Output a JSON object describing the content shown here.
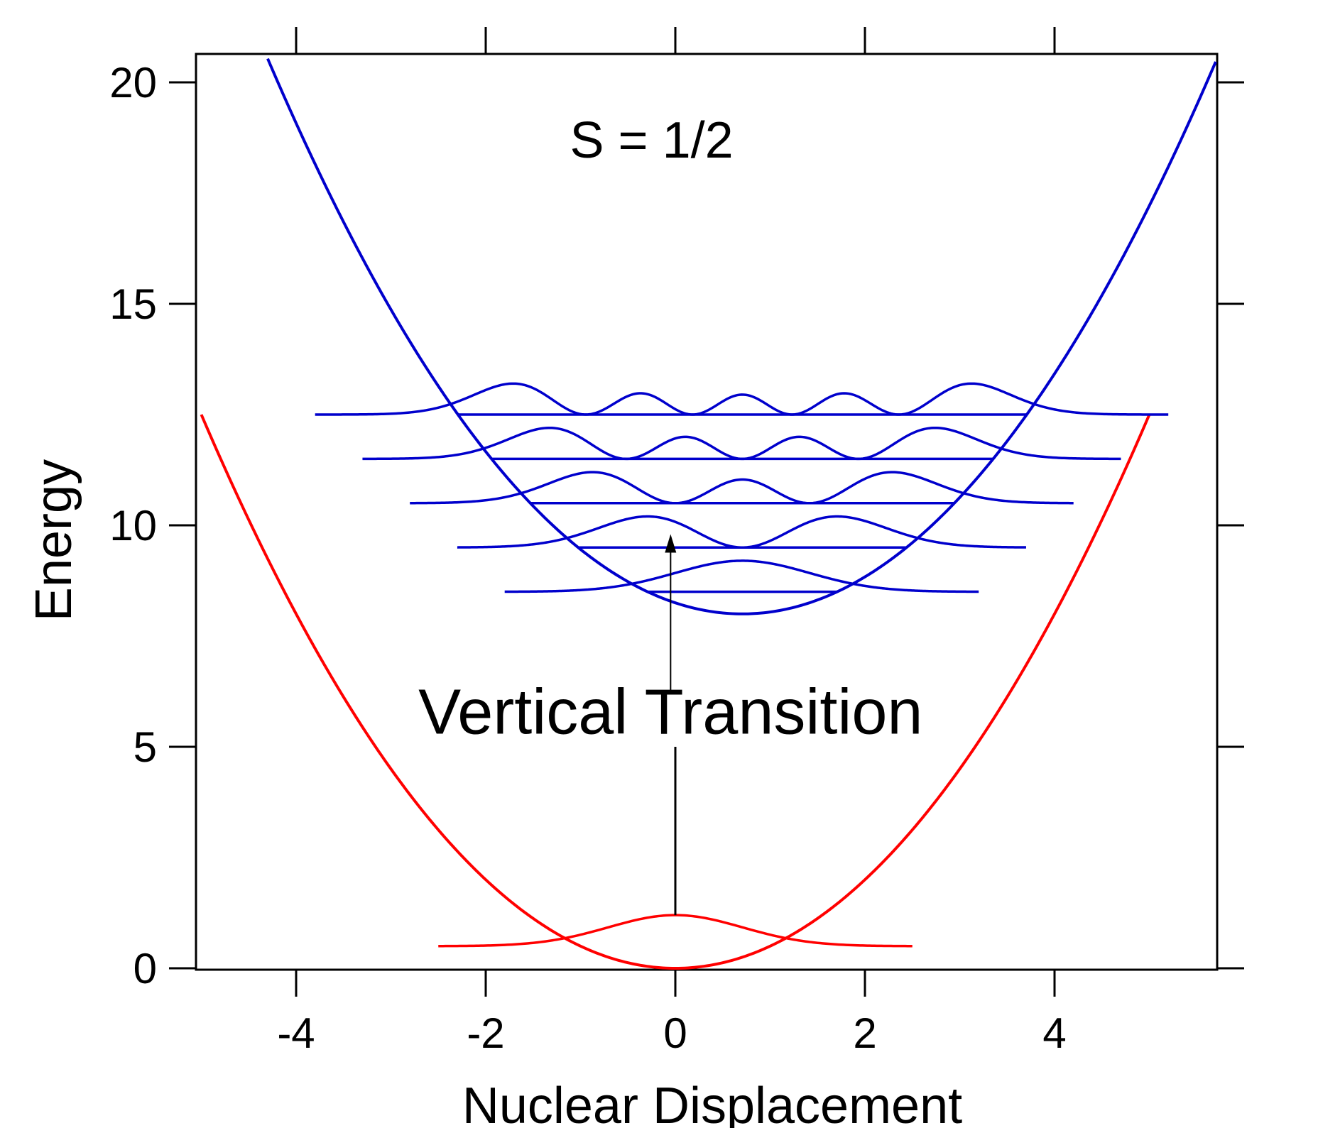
{
  "chart_data": {
    "type": "line",
    "title": "",
    "xlabel": "Nuclear Displacement",
    "ylabel": "Energy",
    "xlim": [
      -5.2,
      5.7
    ],
    "ylim": [
      -0.1,
      20.6
    ],
    "grid": false,
    "legend": "none",
    "x_ticks": [
      -4,
      -2,
      0,
      2,
      4
    ],
    "x_tick_labels": [
      "-4",
      "-2",
      "0",
      "2",
      "4"
    ],
    "y_ticks": [
      0,
      5,
      10,
      15,
      20
    ],
    "y_tick_labels": [
      "0",
      "5",
      "10",
      "15",
      "20"
    ],
    "colors": {
      "ground": "#ff0000",
      "excited": "#0000cc",
      "arrow": "#000000",
      "axes": "#000000"
    },
    "series": [
      {
        "role": "ground-potential",
        "color": "#ff0000",
        "equation": "E = 0.5*x^2",
        "x_range": [
          -5.0,
          5.0
        ],
        "minimum": [
          0,
          0
        ]
      },
      {
        "role": "excited-potential",
        "color": "#0000cc",
        "equation": "E = 8 + 0.5*(x - 0.707)^2",
        "x_range": [
          -4.3,
          5.7
        ],
        "minimum": [
          0.707,
          8
        ]
      },
      {
        "role": "ground-wavefunction",
        "color": "#ff0000",
        "level": 0,
        "energy": 0.5,
        "center": 0,
        "x_range": [
          -2.5,
          2.5
        ]
      }
    ],
    "excited_levels": [
      {
        "v": 0,
        "energy": 8.5,
        "x_range": [
          -1.8,
          3.2
        ]
      },
      {
        "v": 1,
        "energy": 9.5,
        "x_range": [
          -2.3,
          3.7
        ]
      },
      {
        "v": 2,
        "energy": 10.5,
        "x_range": [
          -2.8,
          4.2
        ]
      },
      {
        "v": 3,
        "energy": 11.5,
        "x_range": [
          -3.3,
          4.7
        ]
      },
      {
        "v": 4,
        "energy": 12.5,
        "x_range": [
          -3.8,
          5.2
        ]
      }
    ],
    "annotations": [
      {
        "text": "S = 1/2",
        "x": -0.25,
        "y": 18.3
      },
      {
        "text": "Vertical Transition",
        "x": -0.05,
        "y": 5.3
      }
    ],
    "transition_arrow": {
      "x": 0,
      "from_energy": 1.2,
      "to_energy": 9.8
    }
  }
}
